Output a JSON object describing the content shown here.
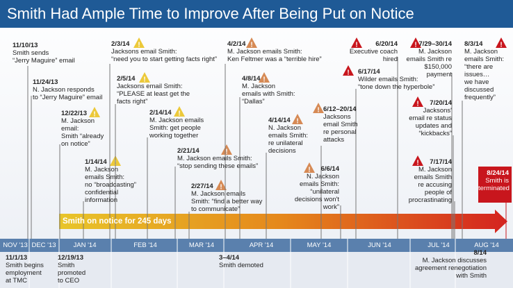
{
  "title": "Smith Had Ample Time to Improve After Being Put on Notice",
  "events": [
    {
      "date": "11/10/13",
      "lines": [
        "Smith sends",
        "“Jerry Maguire” email"
      ]
    },
    {
      "date": "11/24/13",
      "lines": [
        "N. Jackson responds",
        "to “Jerry Maguire” email"
      ]
    },
    {
      "date": "12/22/13",
      "lines": [
        "M. Jackson",
        "email:",
        "Smith “already",
        "on notice”"
      ]
    },
    {
      "date": "1/14/14",
      "lines": [
        "M. Jackson",
        "emails Smith:",
        "no “broadcasting”",
        "confidential",
        "information"
      ]
    },
    {
      "date": "2/3/14",
      "lines": [
        "Jacksons email Smith:",
        "“need you to start getting facts right”"
      ]
    },
    {
      "date": "2/5/14",
      "lines": [
        "Jacksons email Smith:",
        "“PLEASE at least get the",
        "facts right”"
      ]
    },
    {
      "date": "2/14/14",
      "lines": [
        "M. Jackson emails",
        "Smith: get people",
        "working together"
      ]
    },
    {
      "date": "2/21/14",
      "lines": [
        "M. Jackson emails Smith:",
        "“stop sending these emails”"
      ]
    },
    {
      "date": "2/27/14",
      "lines": [
        "M. Jackson emails",
        "Smith: “find a better way",
        "to communicate”"
      ]
    },
    {
      "date": "4/2/14",
      "lines": [
        "M. Jackson emails Smith:",
        "Ken Feltmer was a “terrible hire”"
      ]
    },
    {
      "date": "4/8/14",
      "lines": [
        "M. Jackson",
        "emails with Smith:",
        "“Dallas”"
      ]
    },
    {
      "date": "4/14/14",
      "lines": [
        "N. Jackson",
        "emails Smith:",
        "re unilateral",
        "decisions"
      ]
    },
    {
      "date": "6/6/14",
      "lines": [
        "N. Jackson",
        "emails Smith:",
        "“unilateral",
        "decisions won't",
        "work”"
      ]
    },
    {
      "date": "6/12–20/14",
      "lines": [
        "Jacksons",
        "email Smith",
        "re personal",
        "attacks"
      ]
    },
    {
      "date": "6/17/14",
      "lines": [
        "Wilder emails Smith:",
        "“tone down the hyperbole”"
      ]
    },
    {
      "date": "6/20/14",
      "lines": [
        "Executive coach",
        "hired"
      ]
    },
    {
      "date": "7/29–30/14",
      "lines": [
        "M. Jackson",
        "emails Smith re",
        "$150,000",
        "payment"
      ]
    },
    {
      "date": "7/20/14",
      "lines": [
        "Jacksons'",
        "email re status",
        "updates and",
        "“kickbacks”"
      ]
    },
    {
      "date": "7/17/14",
      "lines": [
        "M. Jackson",
        "emails Smith",
        "re accusing",
        "people of",
        "procrastinating"
      ]
    },
    {
      "date": "8/3/14",
      "lines": [
        "M. Jackson",
        "emails Smith:",
        "“there are",
        "issues…",
        "we have",
        "discussed",
        "frequently”"
      ]
    }
  ],
  "termination": {
    "date": "8/24/14",
    "lines": [
      "Smith is",
      "terminated"
    ]
  },
  "notice_bar": "Smith on notice for 245 days",
  "months": [
    "NOV '13",
    "DEC '13",
    "JAN '14",
    "FEB '14",
    "MAR '14",
    "APR '14",
    "MAY '14",
    "JUN '14",
    "JUL '14",
    "AUG '14"
  ],
  "bottom_events": [
    {
      "date": "11/1/13",
      "lines": [
        "Smith begins",
        "employment",
        "at TMC"
      ]
    },
    {
      "date": "12/19/13",
      "lines": [
        "Smith",
        "promoted",
        "to CEO"
      ]
    },
    {
      "date": "3–4/14",
      "lines": [
        "Smith demoted"
      ]
    },
    {
      "date": "8/14",
      "lines": [
        "M. Jackson discusses",
        "agreement renegotiation",
        "with Smith"
      ]
    }
  ]
}
